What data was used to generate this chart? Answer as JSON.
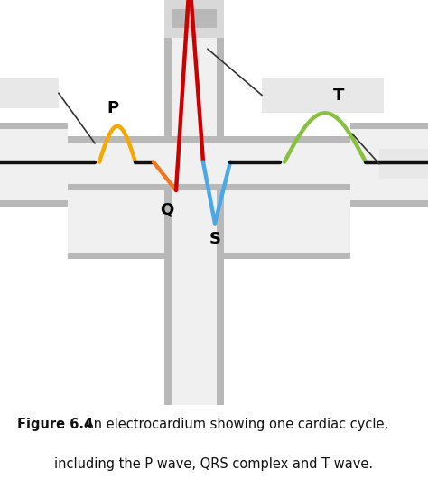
{
  "bg_color": "#ffffff",
  "fig_caption_bold": "Figure 6.4",
  "fig_caption_normal": " An electrocardium showing one cardiac cycle,",
  "fig_caption_normal2": "including the P wave, QRS complex and T wave.",
  "caption_fontsize": 10.5,
  "ecg_color_black": "#111111",
  "ecg_color_p": "#f5a800",
  "ecg_color_q": "#f07820",
  "ecg_color_r": "#cc0000",
  "ecg_color_s": "#4aa8e8",
  "ecg_color_t": "#88c040",
  "lw": 3.2,
  "label_fontsize": 13,
  "label_fontweight": "bold",
  "c_outer": "#b8b8b8",
  "c_inner": "#d8d8d8",
  "c_center": "#f0f0f0",
  "c_light_box": "#e8e8e8",
  "ann_color": "#333333"
}
